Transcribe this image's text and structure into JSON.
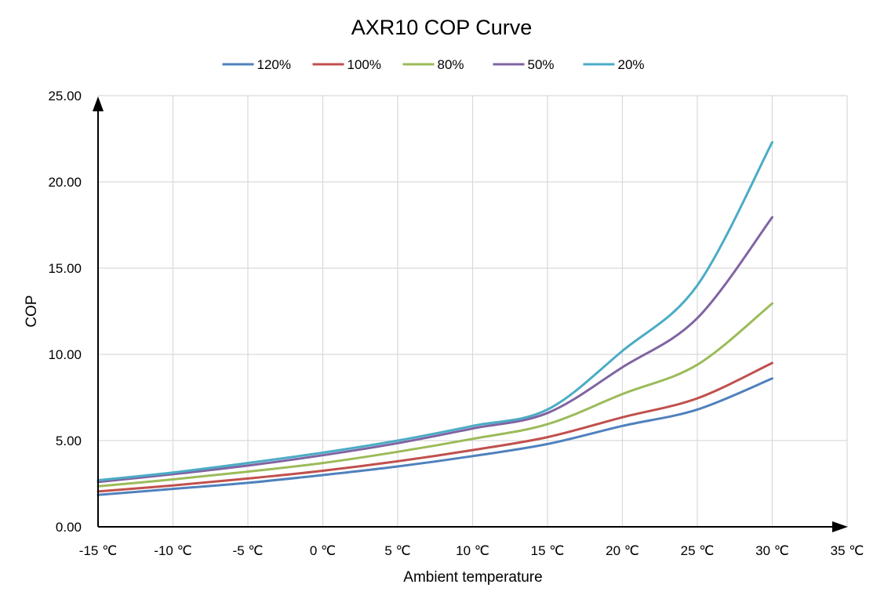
{
  "chart_data": {
    "type": "line",
    "title": "AXR10 COP Curve",
    "xlabel": "Ambient temperature",
    "ylabel": "COP",
    "x": [
      -15,
      -10,
      -5,
      0,
      5,
      10,
      15,
      20,
      25,
      30
    ],
    "x_tick_labels": [
      "-15 ℃",
      "-10 ℃",
      "-5 ℃",
      "0 ℃",
      "5 ℃",
      "10 ℃",
      "15 ℃",
      "20 ℃",
      "25 ℃",
      "30 ℃",
      "35 ℃"
    ],
    "y_tick_labels": [
      "0.00",
      "5.00",
      "10.00",
      "15.00",
      "20.00",
      "25.00"
    ],
    "xlim": [
      -15,
      35
    ],
    "ylim": [
      0,
      25
    ],
    "grid": true,
    "legend_position": "top",
    "series": [
      {
        "name": "120%",
        "color": "#4F81BD",
        "values": [
          1.85,
          2.2,
          2.55,
          3.0,
          3.5,
          4.1,
          4.8,
          5.85,
          6.8,
          8.6
        ]
      },
      {
        "name": "100%",
        "color": "#C0504D",
        "values": [
          2.05,
          2.4,
          2.8,
          3.25,
          3.8,
          4.45,
          5.2,
          6.35,
          7.45,
          9.5
        ]
      },
      {
        "name": "80%",
        "color": "#9BBB59",
        "values": [
          2.35,
          2.75,
          3.2,
          3.7,
          4.35,
          5.1,
          5.95,
          7.7,
          9.4,
          12.95
        ]
      },
      {
        "name": "50%",
        "color": "#8064A2",
        "values": [
          2.6,
          3.05,
          3.55,
          4.15,
          4.85,
          5.7,
          6.6,
          9.25,
          12.1,
          17.95
        ]
      },
      {
        "name": "20%",
        "color": "#4BACC6",
        "values": [
          2.7,
          3.15,
          3.7,
          4.3,
          5.0,
          5.85,
          6.8,
          10.2,
          14.0,
          22.3
        ]
      }
    ]
  }
}
